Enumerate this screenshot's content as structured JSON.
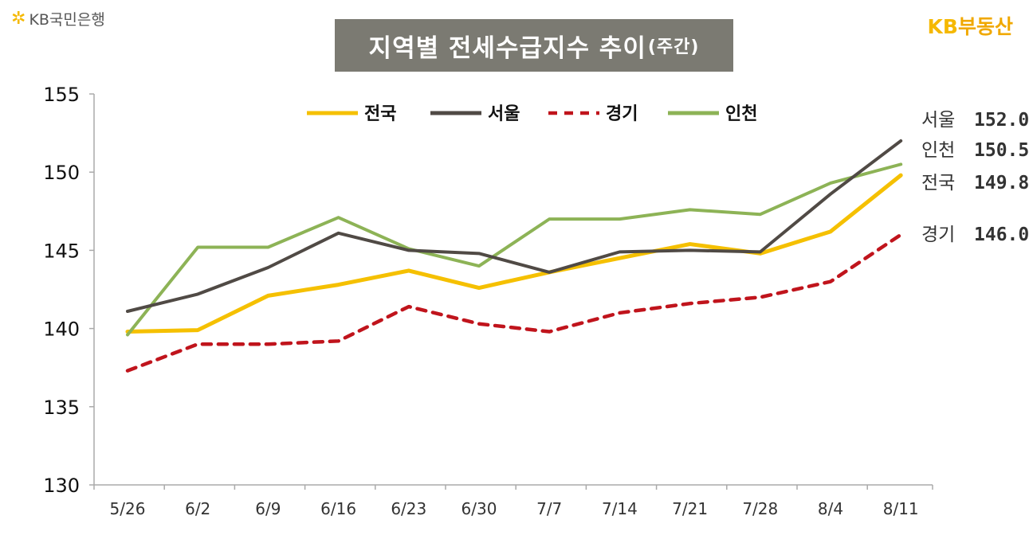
{
  "header": {
    "left_logo": "KB국민은행",
    "right_logo_kb": "KB",
    "right_logo_text": "부동산"
  },
  "chart_data": {
    "type": "line",
    "title": "지역별 전세수급지수 추이",
    "subtitle": "(주간)",
    "xlabel": "",
    "ylabel": "",
    "categories": [
      "5/26",
      "6/2",
      "6/9",
      "6/16",
      "6/23",
      "6/30",
      "7/7",
      "7/14",
      "7/21",
      "7/28",
      "8/4",
      "8/11"
    ],
    "ylim": [
      130,
      155
    ],
    "yticks": [
      130,
      135,
      140,
      145,
      150,
      155
    ],
    "legend_position": "top-center",
    "series": [
      {
        "name": "전국",
        "color": "#f5c000",
        "dash": "solid",
        "values": [
          139.8,
          139.9,
          142.1,
          142.8,
          143.7,
          142.6,
          143.6,
          144.5,
          145.4,
          144.8,
          146.2,
          149.8
        ]
      },
      {
        "name": "서울",
        "color": "#504a45",
        "dash": "solid",
        "values": [
          141.1,
          142.2,
          143.9,
          146.1,
          145.0,
          144.8,
          143.6,
          144.9,
          145.0,
          144.9,
          148.6,
          152.0
        ]
      },
      {
        "name": "경기",
        "color": "#c0141c",
        "dash": "dashed",
        "values": [
          137.3,
          139.0,
          139.0,
          139.2,
          141.4,
          140.3,
          139.8,
          141.0,
          141.6,
          142.0,
          143.0,
          146.0
        ]
      },
      {
        "name": "인천",
        "color": "#8db356",
        "dash": "solid",
        "values": [
          139.6,
          145.2,
          145.2,
          147.1,
          145.1,
          144.0,
          147.0,
          147.0,
          147.6,
          147.3,
          149.3,
          150.5
        ]
      }
    ],
    "end_labels": [
      {
        "name": "서울",
        "value": "152.0"
      },
      {
        "name": "인천",
        "value": "150.5"
      },
      {
        "name": "전국",
        "value": "149.8"
      },
      {
        "name": "경기",
        "value": "146.0"
      }
    ]
  }
}
